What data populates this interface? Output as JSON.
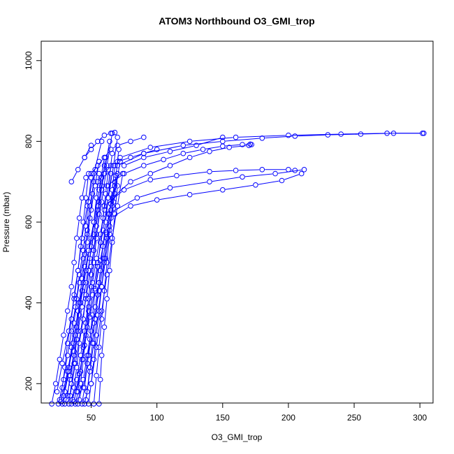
{
  "chart_data": {
    "type": "line",
    "title": "ATOM3 Northbound O3_GMI_trop",
    "xlabel": "O3_GMI_trop",
    "ylabel": "Pressure (mbar)",
    "xlim": [
      12,
      310
    ],
    "ylim": [
      1048,
      152
    ],
    "y_reversed": true,
    "x_ticks": [
      50,
      100,
      150,
      200,
      250,
      300
    ],
    "y_ticks": [
      200,
      400,
      600,
      800,
      1000
    ],
    "marker": "open-circle",
    "grid": false,
    "legend": "none",
    "color": "#0000ff",
    "series": [
      {
        "x": [
          20,
          23,
          26,
          29,
          32,
          35,
          37,
          39,
          41,
          43,
          46
        ],
        "y": [
          150,
          200,
          260,
          320,
          380,
          440,
          500,
          560,
          610,
          660,
          710
        ]
      },
      {
        "x": [
          25,
          28,
          30,
          32,
          35,
          37,
          40,
          42,
          44,
          46,
          48
        ],
        "y": [
          150,
          190,
          240,
          300,
          360,
          420,
          480,
          540,
          600,
          660,
          720
        ]
      },
      {
        "x": [
          28,
          30,
          33,
          35,
          37,
          39,
          41,
          44,
          46,
          48,
          50
        ],
        "y": [
          150,
          180,
          230,
          290,
          350,
          410,
          470,
          530,
          590,
          650,
          710
        ]
      },
      {
        "x": [
          30,
          32,
          34,
          37,
          39,
          41,
          43,
          45,
          47,
          49,
          52
        ],
        "y": [
          150,
          170,
          220,
          280,
          340,
          400,
          460,
          520,
          580,
          640,
          700
        ]
      },
      {
        "x": [
          33,
          35,
          37,
          39,
          41,
          43,
          45,
          47,
          49,
          51,
          53
        ],
        "y": [
          150,
          200,
          250,
          310,
          370,
          430,
          490,
          550,
          610,
          670,
          730
        ]
      },
      {
        "x": [
          35,
          37,
          39,
          41,
          44,
          46,
          48,
          50,
          52,
          54,
          56
        ],
        "y": [
          150,
          190,
          240,
          300,
          360,
          420,
          480,
          540,
          600,
          660,
          720
        ]
      },
      {
        "x": [
          38,
          40,
          42,
          44,
          46,
          48,
          50,
          52,
          54,
          56,
          58
        ],
        "y": [
          150,
          180,
          230,
          290,
          350,
          410,
          470,
          530,
          590,
          650,
          710
        ]
      },
      {
        "x": [
          40,
          42,
          44,
          46,
          48,
          50,
          52,
          54,
          56,
          58,
          60
        ],
        "y": [
          150,
          200,
          260,
          320,
          380,
          440,
          500,
          560,
          620,
          680,
          740
        ]
      },
      {
        "x": [
          43,
          45,
          47,
          49,
          51,
          53,
          55,
          57,
          59,
          61,
          63
        ],
        "y": [
          150,
          190,
          250,
          310,
          370,
          430,
          490,
          550,
          610,
          670,
          730
        ]
      },
      {
        "x": [
          45,
          47,
          49,
          51,
          53,
          55,
          57,
          59,
          61,
          63,
          65
        ],
        "y": [
          150,
          180,
          240,
          300,
          360,
          420,
          480,
          540,
          600,
          660,
          720
        ]
      },
      {
        "x": [
          48,
          50,
          52,
          54,
          56,
          58,
          60,
          62,
          64,
          66,
          68
        ],
        "y": [
          150,
          200,
          260,
          320,
          380,
          440,
          500,
          560,
          620,
          680,
          740
        ]
      },
      {
        "x": [
          26,
          29,
          32,
          35,
          38,
          41,
          44,
          47,
          50,
          53,
          56
        ],
        "y": [
          160,
          210,
          270,
          330,
          390,
          450,
          510,
          570,
          630,
          690,
          750
        ]
      },
      {
        "x": [
          31,
          34,
          37,
          40,
          43,
          46,
          49,
          52,
          55,
          58,
          61
        ],
        "y": [
          160,
          210,
          270,
          330,
          390,
          450,
          510,
          570,
          630,
          690,
          760
        ]
      },
      {
        "x": [
          36,
          39,
          42,
          45,
          48,
          51,
          54,
          57,
          60,
          63,
          66
        ],
        "y": [
          160,
          210,
          270,
          330,
          390,
          450,
          510,
          570,
          630,
          690,
          770
        ]
      },
      {
        "x": [
          41,
          44,
          47,
          50,
          53,
          56,
          59,
          62,
          65,
          68,
          71
        ],
        "y": [
          160,
          210,
          270,
          330,
          390,
          450,
          510,
          570,
          630,
          690,
          780
        ]
      },
      {
        "x": [
          46,
          49,
          52,
          55,
          58,
          61,
          64,
          67,
          70
        ],
        "y": [
          160,
          230,
          300,
          370,
          440,
          510,
          580,
          650,
          720
        ]
      },
      {
        "x": [
          52,
          54,
          56,
          58,
          60,
          62,
          64,
          66,
          68
        ],
        "y": [
          150,
          220,
          290,
          360,
          430,
          500,
          570,
          640,
          700
        ]
      },
      {
        "x": [
          56,
          57,
          58,
          60,
          62,
          64,
          66,
          68,
          70
        ],
        "y": [
          150,
          210,
          270,
          340,
          410,
          480,
          550,
          620,
          690
        ]
      },
      {
        "x": [
          24,
          28,
          33,
          37,
          40,
          43,
          47,
          52,
          58
        ],
        "y": [
          180,
          250,
          330,
          410,
          480,
          560,
          640,
          720,
          800
        ]
      },
      {
        "x": [
          29,
          33,
          38,
          42,
          46,
          50,
          55,
          60,
          64
        ],
        "y": [
          170,
          240,
          320,
          400,
          480,
          560,
          640,
          720,
          800
        ]
      },
      {
        "x": [
          34,
          38,
          42,
          46,
          50,
          54,
          58,
          62,
          66
        ],
        "y": [
          170,
          250,
          330,
          410,
          490,
          570,
          650,
          740,
          820
        ]
      },
      {
        "x": [
          39,
          43,
          47,
          51,
          55,
          59,
          63,
          67,
          70
        ],
        "y": [
          180,
          260,
          340,
          420,
          500,
          580,
          660,
          740,
          810
        ]
      },
      {
        "x": [
          44,
          48,
          52,
          56,
          60,
          64,
          68,
          72
        ],
        "y": [
          190,
          270,
          350,
          430,
          510,
          590,
          670,
          750
        ]
      },
      {
        "x": [
          50,
          54,
          58,
          62,
          66,
          70,
          74
        ],
        "y": [
          200,
          290,
          380,
          470,
          560,
          640,
          720
        ]
      },
      {
        "x": [
          27,
          32,
          36,
          40,
          44,
          48,
          52,
          56,
          60
        ],
        "y": [
          155,
          230,
          300,
          380,
          450,
          530,
          600,
          680,
          760
        ]
      },
      {
        "x": [
          37,
          41,
          45,
          49,
          53,
          57,
          61,
          65,
          69
        ],
        "y": [
          155,
          225,
          295,
          365,
          435,
          505,
          575,
          645,
          715
        ]
      },
      {
        "x": [
          65,
          80,
          100,
          125,
          150,
          175,
          195,
          210
        ],
        "y": [
          610,
          640,
          655,
          668,
          680,
          692,
          703,
          720
        ]
      },
      {
        "x": [
          63,
          85,
          110,
          140,
          165,
          190,
          212
        ],
        "y": [
          620,
          660,
          685,
          700,
          712,
          720,
          730
        ]
      },
      {
        "x": [
          60,
          75,
          95,
          115,
          140,
          160,
          180,
          200,
          205
        ],
        "y": [
          640,
          680,
          705,
          715,
          725,
          728,
          730,
          730,
          728
        ]
      },
      {
        "x": [
          66,
          80,
          95,
          110,
          125,
          140,
          155,
          170,
          172
        ],
        "y": [
          660,
          700,
          720,
          740,
          760,
          775,
          785,
          790,
          792
        ]
      },
      {
        "x": [
          62,
          75,
          90,
          105,
          120,
          135,
          150,
          165,
          171
        ],
        "y": [
          690,
          720,
          740,
          755,
          770,
          780,
          788,
          792,
          793
        ]
      },
      {
        "x": [
          70,
          90,
          120,
          150,
          180,
          205,
          230,
          255,
          280,
          302
        ],
        "y": [
          740,
          770,
          790,
          800,
          808,
          813,
          816,
          818,
          820,
          820
        ]
      },
      {
        "x": [
          72,
          95,
          125,
          160,
          200,
          240,
          275,
          303
        ],
        "y": [
          760,
          785,
          800,
          810,
          815,
          818,
          820,
          820
        ]
      },
      {
        "x": [
          75,
          90,
          110,
          130,
          150
        ],
        "y": [
          740,
          760,
          775,
          790,
          810
        ]
      },
      {
        "x": [
          55,
          60,
          65,
          70,
          80,
          90,
          100
        ],
        "y": [
          700,
          720,
          740,
          750,
          760,
          770,
          780
        ]
      },
      {
        "x": [
          50,
          55,
          60,
          65,
          70,
          80,
          90
        ],
        "y": [
          720,
          740,
          760,
          780,
          790,
          800,
          810
        ]
      },
      {
        "x": [
          45,
          50,
          55,
          60,
          65,
          68
        ],
        "y": [
          760,
          780,
          800,
          815,
          820,
          822
        ]
      },
      {
        "x": [
          35,
          40,
          45,
          50
        ],
        "y": [
          700,
          730,
          760,
          790
        ]
      }
    ]
  }
}
